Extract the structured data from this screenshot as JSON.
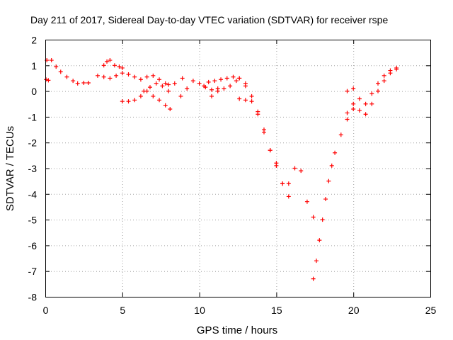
{
  "chart_data": {
    "type": "scatter",
    "title": "Day 211 of 2017, Sidereal Day-to-day VTEC variation (SDTVAR) for receiver rspe",
    "xlabel": "GPS time / hours",
    "ylabel": "SDTVAR / TECUs",
    "xlim": [
      0,
      25
    ],
    "ylim": [
      -8,
      2
    ],
    "xticks": [
      0,
      5,
      10,
      15,
      20,
      25
    ],
    "yticks": [
      -8,
      -7,
      -6,
      -5,
      -4,
      -3,
      -2,
      -1,
      0,
      1,
      2
    ],
    "grid": true,
    "marker": "+",
    "color": "#ff0000",
    "series": [
      {
        "name": "seg1",
        "x": [
          0.05,
          0.2
        ],
        "y": [
          0.45,
          0.42
        ]
      },
      {
        "name": "seg2",
        "x": [
          0.1,
          0.4,
          0.7,
          1.0,
          1.4,
          1.8,
          2.1,
          2.5,
          2.8
        ],
        "y": [
          1.2,
          1.2,
          0.95,
          0.75,
          0.55,
          0.4,
          0.3,
          0.32,
          0.32
        ]
      },
      {
        "name": "seg3",
        "x": [
          3.4,
          3.8,
          4.2,
          4.6,
          5.0,
          5.4,
          5.8,
          6.2,
          6.6,
          7.0,
          7.4,
          7.8,
          8.0
        ],
        "y": [
          0.6,
          0.55,
          0.5,
          0.6,
          0.7,
          0.65,
          0.55,
          0.45,
          0.55,
          0.6,
          0.45,
          0.3,
          0.25
        ]
      },
      {
        "name": "seg4",
        "x": [
          3.8,
          4.0,
          4.2,
          4.5,
          4.8,
          5.0
        ],
        "y": [
          1.0,
          1.15,
          1.2,
          1.0,
          0.95,
          0.9
        ]
      },
      {
        "name": "seg5",
        "x": [
          5.0,
          5.4,
          5.8,
          6.2,
          6.6,
          7.0,
          7.4,
          7.8,
          8.1
        ],
        "y": [
          -0.4,
          -0.4,
          -0.35,
          -0.2,
          0.0,
          -0.2,
          -0.35,
          -0.55,
          -0.7
        ]
      },
      {
        "name": "seg6",
        "x": [
          6.4,
          6.8,
          7.2,
          7.6,
          8.0,
          8.4,
          8.9
        ],
        "y": [
          0.0,
          0.15,
          0.3,
          0.2,
          0.0,
          0.3,
          0.5
        ]
      },
      {
        "name": "seg7",
        "x": [
          8.8,
          9.2,
          9.6,
          10.0,
          10.4,
          10.8,
          11.2
        ],
        "y": [
          -0.2,
          0.1,
          0.4,
          0.3,
          0.15,
          0.05,
          0.1
        ]
      },
      {
        "name": "seg8",
        "x": [
          10.3,
          10.6,
          11.0,
          11.4,
          11.8,
          12.2,
          12.6,
          13.0
        ],
        "y": [
          0.2,
          0.35,
          0.4,
          0.45,
          0.5,
          0.55,
          0.5,
          0.3
        ]
      },
      {
        "name": "seg9",
        "x": [
          10.8,
          11.2,
          11.6,
          12.0,
          12.4,
          12.6
        ],
        "y": [
          -0.2,
          0.0,
          0.1,
          0.2,
          0.4,
          0.5
        ]
      },
      {
        "name": "seg10",
        "x": [
          12.6,
          13.0,
          13.4,
          13.8,
          14.2,
          14.6,
          15.0,
          15.4,
          15.8
        ],
        "y": [
          -0.3,
          -0.35,
          -0.4,
          -0.9,
          -1.6,
          -2.3,
          -2.8,
          -3.6,
          -4.1
        ]
      },
      {
        "name": "seg11",
        "x": [
          13.0,
          13.4,
          13.8,
          14.2,
          14.6,
          15.0,
          15.4
        ],
        "y": [
          0.2,
          -0.2,
          -0.8,
          -1.5,
          -2.3,
          -2.9,
          -3.6
        ]
      },
      {
        "name": "seg12",
        "x": [
          15.8,
          16.2,
          16.6,
          17.0,
          17.4
        ],
        "y": [
          -3.6,
          -3.0,
          -3.1,
          -4.3,
          -4.9
        ]
      },
      {
        "name": "seg13",
        "x": [
          17.4,
          17.6,
          17.8,
          18.0,
          18.2,
          18.4,
          18.6,
          18.8,
          19.2,
          19.6,
          20.0
        ],
        "y": [
          -7.3,
          -6.6,
          -5.8,
          -5.0,
          -4.2,
          -3.5,
          -2.9,
          -2.4,
          -1.7,
          -1.1,
          -0.5
        ]
      },
      {
        "name": "seg14",
        "x": [
          19.6,
          20.0,
          20.4,
          20.8,
          21.2,
          21.6,
          22.0,
          22.4,
          22.8
        ],
        "y": [
          0.0,
          0.1,
          -0.3,
          -0.5,
          -0.1,
          0.3,
          0.6,
          0.8,
          0.9
        ]
      },
      {
        "name": "seg15",
        "x": [
          19.6,
          20.0,
          20.4,
          20.8,
          21.2,
          21.6,
          22.0,
          22.4,
          22.8
        ],
        "y": [
          -0.85,
          -0.7,
          -0.75,
          -0.9,
          -0.5,
          0.0,
          0.4,
          0.7,
          0.85
        ]
      }
    ]
  }
}
